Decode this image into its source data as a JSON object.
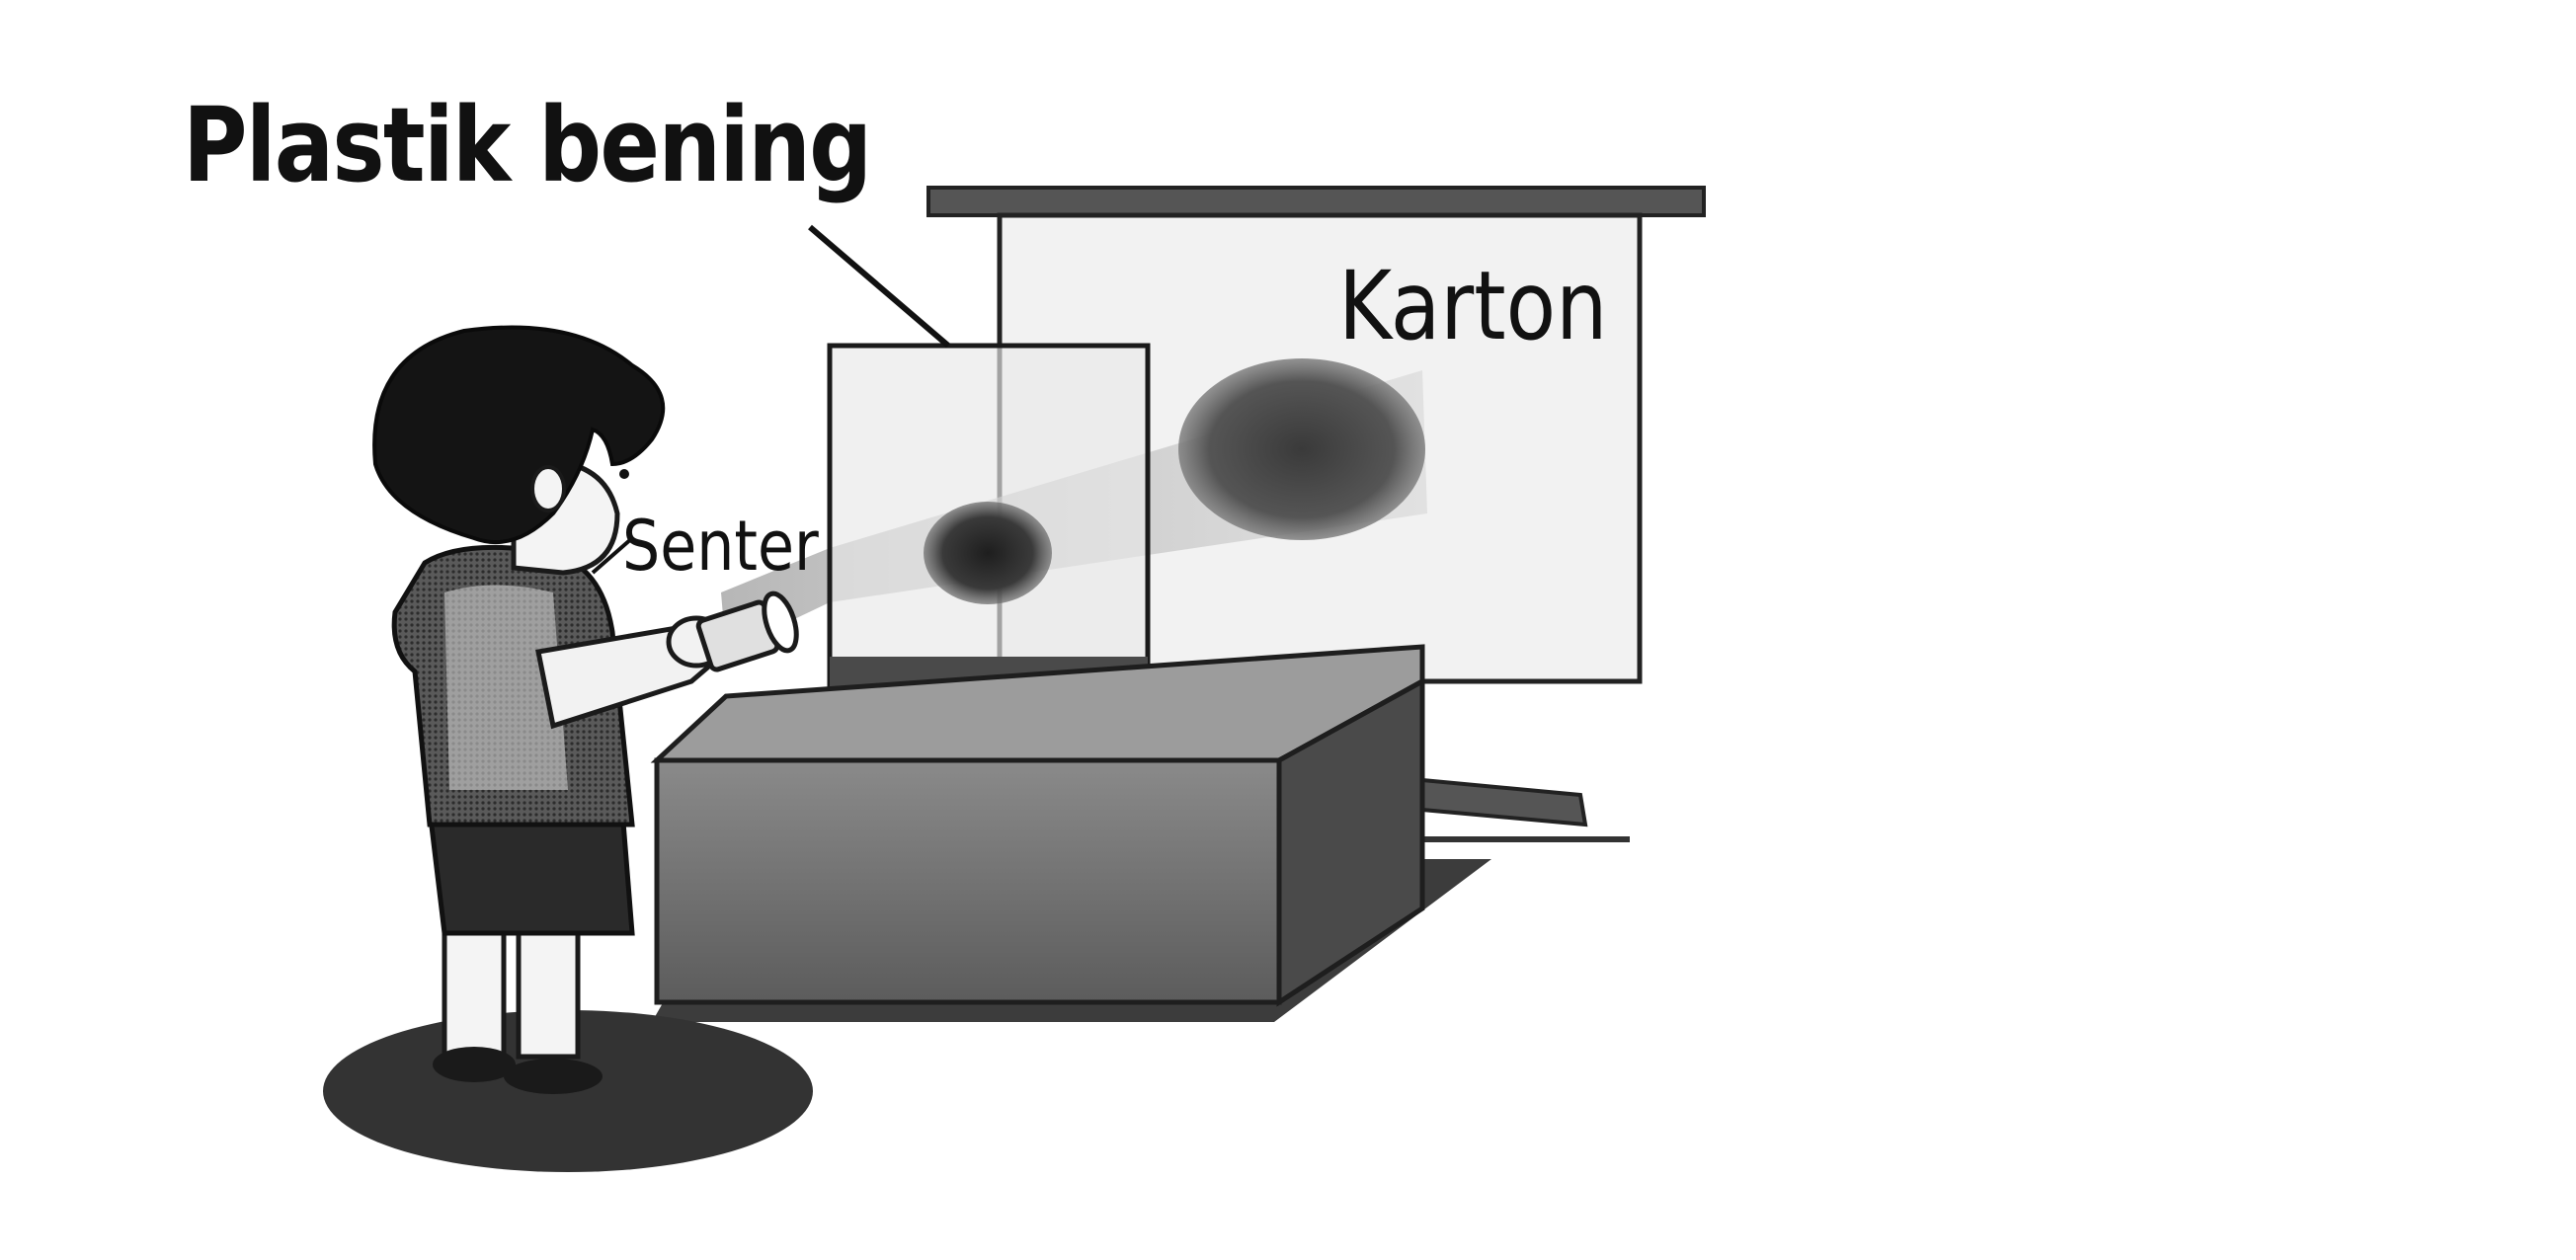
{
  "labels": {
    "plastik": "Plastik bening",
    "karton": "Karton",
    "senter": "Senter"
  },
  "colors": {
    "ink": "#111111",
    "shadow": "#3a3a3a",
    "board": "#f2f2f2",
    "table": "#6e6e6e",
    "hair": "#141414"
  }
}
